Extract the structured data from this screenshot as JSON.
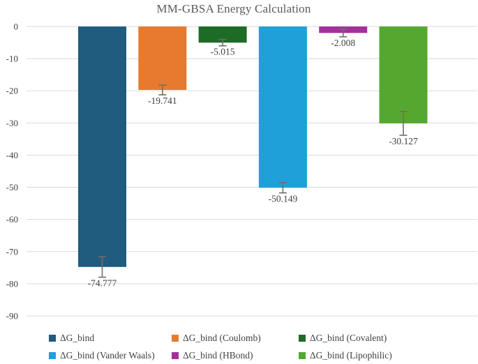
{
  "chart_data": {
    "type": "bar",
    "title": "MM-GBSA Energy Calculation",
    "xlabel": "",
    "ylabel": "",
    "ylim": [
      -90,
      0
    ],
    "yticks": [
      0,
      -10,
      -20,
      -30,
      -40,
      -50,
      -60,
      -70,
      -80,
      -90
    ],
    "grid": true,
    "gridline_color": "#d9d9d9",
    "error_bar_color": "#6e6e6e",
    "text_color": "#404040",
    "title_color": "#595959",
    "legend_position": "bottom",
    "legend_columns": 3,
    "series": [
      {
        "name": "ΔG_bind",
        "value": -74.777,
        "label": "-74.777",
        "error": 3.2,
        "color": "#1F5C7E"
      },
      {
        "name": "ΔG_bind (Coulomb)",
        "value": -19.741,
        "label": "-19.741",
        "error": 1.5,
        "color": "#E87A30"
      },
      {
        "name": "ΔG_bind (Covalent)",
        "value": -5.015,
        "label": "-5.015",
        "error": 1.0,
        "color": "#1E6B27"
      },
      {
        "name": "ΔG_bind (Vander Waals)",
        "value": -50.149,
        "label": "-50.149",
        "error": 1.6,
        "color": "#1FA0D9"
      },
      {
        "name": "ΔG_bind (HBond)",
        "value": -2.008,
        "label": "-2.008",
        "error": 1.2,
        "color": "#A3309A"
      },
      {
        "name": "ΔG_bind (Lipophilic)",
        "value": -30.127,
        "label": "-30.127",
        "error": 3.7,
        "color": "#55A82F"
      }
    ]
  }
}
